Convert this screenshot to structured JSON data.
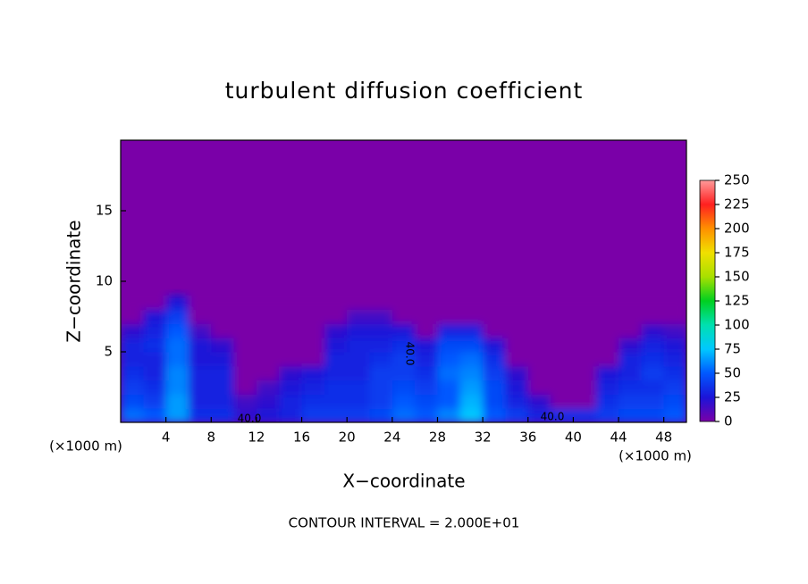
{
  "chart_data": {
    "type": "heatmap",
    "title": "turbulent diffusion coefficient",
    "x_label": "X−coordinate",
    "y_label": "Z−coordinate",
    "x_unit": "(×1000 m)",
    "y_unit": "(×1000 m)",
    "annotation": "CONTOUR INTERVAL = 2.000E+01",
    "contour_labels": [
      "40.0",
      "40.0",
      "40.0"
    ],
    "xlim": [
      0,
      50
    ],
    "ylim": [
      0,
      20
    ],
    "xticks": [
      4,
      8,
      12,
      16,
      20,
      24,
      28,
      32,
      36,
      40,
      44,
      48
    ],
    "yticks": [
      5,
      10,
      15
    ],
    "clim": [
      0,
      250
    ],
    "cticks": [
      0,
      25,
      50,
      75,
      100,
      125,
      150,
      175,
      200,
      225,
      250
    ],
    "colorscale": [
      "#7a00a8",
      "#1c14d8",
      "#0058ff",
      "#00c8ff",
      "#00e0b0",
      "#00d020",
      "#a8e000",
      "#f0e000",
      "#ff9000",
      "#ff2020",
      "#ff9a9a"
    ],
    "x": [
      1,
      3,
      5,
      7,
      9,
      11,
      13,
      15,
      17,
      19,
      21,
      23,
      25,
      27,
      29,
      31,
      33,
      35,
      37,
      39,
      41,
      43,
      45,
      47,
      49
    ],
    "y": [
      0.5,
      1.5,
      2.5,
      3.5,
      4.5,
      5.5,
      6.5,
      7.5,
      8.5
    ],
    "z": [
      [
        55,
        50,
        65,
        35,
        35,
        20,
        25,
        30,
        40,
        40,
        40,
        45,
        55,
        50,
        60,
        75,
        50,
        40,
        30,
        35,
        35,
        40,
        45,
        45,
        50
      ],
      [
        45,
        40,
        65,
        30,
        30,
        15,
        20,
        30,
        35,
        35,
        35,
        40,
        50,
        45,
        50,
        70,
        45,
        30,
        20,
        0,
        0,
        35,
        40,
        40,
        45
      ],
      [
        40,
        35,
        60,
        30,
        30,
        0,
        15,
        25,
        30,
        35,
        35,
        40,
        45,
        40,
        50,
        65,
        45,
        25,
        0,
        0,
        0,
        30,
        35,
        35,
        40
      ],
      [
        35,
        30,
        60,
        30,
        30,
        0,
        0,
        20,
        25,
        30,
        30,
        40,
        40,
        35,
        55,
        60,
        40,
        20,
        0,
        0,
        0,
        25,
        30,
        40,
        35
      ],
      [
        30,
        30,
        55,
        25,
        25,
        0,
        0,
        0,
        0,
        30,
        30,
        35,
        40,
        30,
        50,
        55,
        35,
        0,
        0,
        0,
        0,
        0,
        30,
        35,
        30
      ],
      [
        30,
        35,
        55,
        25,
        20,
        0,
        0,
        0,
        0,
        25,
        30,
        30,
        35,
        25,
        45,
        45,
        25,
        0,
        0,
        0,
        0,
        0,
        20,
        30,
        25
      ],
      [
        20,
        30,
        50,
        15,
        0,
        0,
        0,
        0,
        0,
        20,
        25,
        25,
        25,
        0,
        30,
        30,
        0,
        0,
        0,
        0,
        0,
        0,
        0,
        20,
        15
      ],
      [
        0,
        25,
        40,
        0,
        0,
        0,
        0,
        0,
        0,
        0,
        15,
        15,
        0,
        0,
        0,
        0,
        0,
        0,
        0,
        0,
        0,
        0,
        0,
        0,
        0
      ],
      [
        0,
        0,
        25,
        0,
        0,
        0,
        0,
        0,
        0,
        0,
        0,
        0,
        0,
        0,
        0,
        0,
        0,
        0,
        0,
        0,
        0,
        0,
        0,
        0,
        0
      ]
    ]
  }
}
